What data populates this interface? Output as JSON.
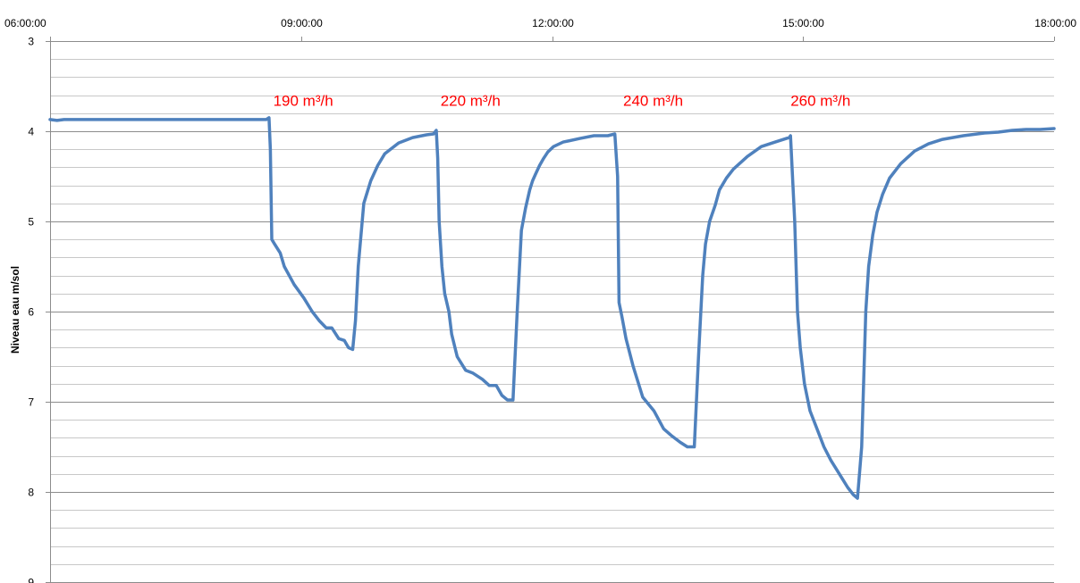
{
  "chart_data": {
    "type": "line",
    "title": "",
    "xlabel": "",
    "ylabel": "Niveau eau m/sol",
    "xlim": [
      "06:00:00",
      "18:00:00"
    ],
    "ylim": [
      3,
      9
    ],
    "y_inverted": true,
    "x_axis_position": "top",
    "grid": true,
    "x_ticks": [
      "06:00:00",
      "09:00:00",
      "12:00:00",
      "15:00:00",
      "18:00:00"
    ],
    "y_ticks": [
      3,
      4,
      5,
      6,
      7,
      8,
      9
    ],
    "colors": {
      "series": "#4f81bd",
      "major_grid": "#8c8c8c",
      "minor_grid": "#c8c8c8",
      "annotation": "#ff0000"
    },
    "annotations": [
      {
        "text": "190 m³/h",
        "x": "08:40",
        "y": 3.72
      },
      {
        "text": "220 m³/h",
        "x": "10:40",
        "y": 3.72
      },
      {
        "text": "240 m³/h",
        "x": "12:51",
        "y": 3.72
      },
      {
        "text": "260 m³/h",
        "x": "14:51",
        "y": 3.72
      }
    ],
    "series": [
      {
        "x": [
          "06:00",
          "06:05",
          "06:10",
          "06:20",
          "07:00",
          "08:00",
          "08:35",
          "08:37",
          "08:38",
          "08:39",
          "08:41",
          "08:45",
          "08:48",
          "08:55",
          "09:02",
          "09:08",
          "09:13",
          "09:18",
          "09:22",
          "09:27",
          "09:31",
          "09:34",
          "09:37",
          "09:39",
          "09:41",
          "09:45",
          "09:50",
          "09:55",
          "10:00",
          "10:10",
          "10:20",
          "10:30",
          "10:35",
          "10:37",
          "10:38",
          "10:39",
          "10:41",
          "10:43",
          "10:46",
          "10:48",
          "10:52",
          "10:58",
          "11:03",
          "11:10",
          "11:15",
          "11:20",
          "11:24",
          "11:28",
          "11:32",
          "11:35",
          "11:38",
          "11:41",
          "11:44",
          "11:46",
          "11:48",
          "11:51",
          "11:54",
          "11:57",
          "12:01",
          "12:08",
          "12:20",
          "12:30",
          "12:40",
          "12:45",
          "12:47",
          "12:48",
          "12:50",
          "12:53",
          "12:58",
          "13:05",
          "13:13",
          "13:20",
          "13:26",
          "13:32",
          "13:37",
          "13:42",
          "13:45",
          "13:48",
          "13:50",
          "13:53",
          "13:57",
          "14:00",
          "14:05",
          "14:10",
          "14:20",
          "14:30",
          "14:40",
          "14:50",
          "14:51",
          "14:54",
          "14:56",
          "14:58",
          "15:01",
          "15:05",
          "15:10",
          "15:15",
          "15:20",
          "15:24",
          "15:28",
          "15:32",
          "15:36",
          "15:39",
          "15:42",
          "15:45",
          "15:47",
          "15:50",
          "15:53",
          "15:57",
          "16:02",
          "16:10",
          "16:20",
          "16:30",
          "16:40",
          "16:55",
          "17:10",
          "17:20",
          "17:30",
          "17:40",
          "17:50",
          "18:00"
        ],
        "values": [
          3.87,
          3.88,
          3.87,
          3.87,
          3.87,
          3.87,
          3.87,
          3.85,
          4.2,
          5.2,
          5.25,
          5.35,
          5.5,
          5.7,
          5.85,
          6.0,
          6.1,
          6.18,
          6.18,
          6.3,
          6.32,
          6.4,
          6.42,
          6.1,
          5.5,
          4.8,
          4.55,
          4.38,
          4.25,
          4.13,
          4.07,
          4.04,
          4.03,
          3.99,
          4.3,
          5.0,
          5.5,
          5.8,
          6.0,
          6.25,
          6.5,
          6.65,
          6.68,
          6.75,
          6.82,
          6.82,
          6.93,
          6.98,
          6.98,
          6.0,
          5.1,
          4.85,
          4.65,
          4.55,
          4.48,
          4.38,
          4.3,
          4.23,
          4.17,
          4.12,
          4.08,
          4.05,
          4.05,
          4.03,
          4.5,
          5.9,
          6.05,
          6.3,
          6.6,
          6.95,
          7.1,
          7.3,
          7.38,
          7.45,
          7.5,
          7.5,
          6.5,
          5.6,
          5.25,
          5.0,
          4.82,
          4.65,
          4.52,
          4.42,
          4.28,
          4.17,
          4.12,
          4.07,
          4.05,
          5.0,
          6.0,
          6.4,
          6.8,
          7.1,
          7.3,
          7.5,
          7.65,
          7.75,
          7.85,
          7.95,
          8.03,
          8.07,
          7.5,
          6.0,
          5.5,
          5.15,
          4.9,
          4.7,
          4.52,
          4.36,
          4.22,
          4.14,
          4.09,
          4.05,
          4.02,
          4.01,
          3.99,
          3.98,
          3.98,
          3.97
        ]
      }
    ]
  }
}
